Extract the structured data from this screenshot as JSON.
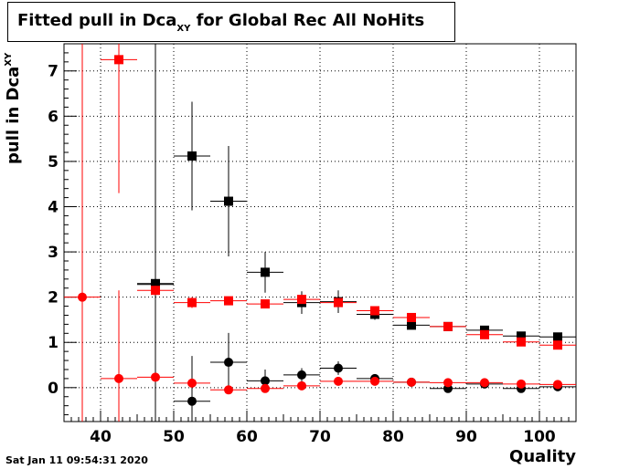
{
  "title": {
    "main": "Fitted pull in Dca",
    "sub": "XY",
    "rest": " for Global Rec All NoHits"
  },
  "ylabel": {
    "main": "pull in Dca",
    "sup": "XY"
  },
  "xlabel": "Quality",
  "timestamp": "Sat Jan 11 09:54:31 2020",
  "chart_data": {
    "type": "scatter",
    "xlim": [
      35,
      105
    ],
    "ylim": [
      -0.75,
      7.6
    ],
    "grid": true,
    "bin_width": 5,
    "x_ticks": [
      40,
      50,
      60,
      70,
      80,
      90,
      100
    ],
    "y_ticks": [
      0,
      1,
      2,
      3,
      4,
      5,
      6,
      7
    ],
    "series": [
      {
        "marker": "square",
        "color": "#000000",
        "points": [
          {
            "x": 47.5,
            "y": 2.3,
            "err": 5.3
          },
          {
            "x": 52.5,
            "y": 5.12,
            "err": 1.2
          },
          {
            "x": 57.5,
            "y": 4.12,
            "err": 1.22
          },
          {
            "x": 62.5,
            "y": 2.55,
            "err": 0.45
          },
          {
            "x": 67.5,
            "y": 1.88,
            "err": 0.25
          },
          {
            "x": 72.5,
            "y": 1.9,
            "err": 0.25
          },
          {
            "x": 77.5,
            "y": 1.62,
            "err": 0.12
          },
          {
            "x": 82.5,
            "y": 1.38,
            "err": 0.05
          },
          {
            "x": 87.5,
            "y": 1.35,
            "err": 0.04
          },
          {
            "x": 92.5,
            "y": 1.27,
            "err": 0.04
          },
          {
            "x": 97.5,
            "y": 1.14,
            "err": 0.04
          },
          {
            "x": 102.5,
            "y": 1.12,
            "err": 0.04
          }
        ]
      },
      {
        "marker": "circle",
        "color": "#000000",
        "points": [
          {
            "x": 47.5,
            "y": 2.28,
            "err": 5.3
          },
          {
            "x": 52.5,
            "y": -0.3,
            "err": 1.0
          },
          {
            "x": 57.5,
            "y": 0.56,
            "err": 0.65
          },
          {
            "x": 62.5,
            "y": 0.15,
            "err": 0.25
          },
          {
            "x": 67.5,
            "y": 0.28,
            "err": 0.15
          },
          {
            "x": 72.5,
            "y": 0.43,
            "err": 0.15
          },
          {
            "x": 77.5,
            "y": 0.2,
            "err": 0.08
          },
          {
            "x": 82.5,
            "y": 0.12,
            "err": 0.04
          },
          {
            "x": 87.5,
            "y": -0.02,
            "err": 0.03
          },
          {
            "x": 92.5,
            "y": 0.08,
            "err": 0.03
          },
          {
            "x": 97.5,
            "y": -0.02,
            "err": 0.03
          },
          {
            "x": 102.5,
            "y": 0.02,
            "err": 0.03
          }
        ]
      },
      {
        "marker": "square",
        "color": "#ff0000",
        "points": [
          {
            "x": 42.5,
            "y": 7.25,
            "err": 2.95
          },
          {
            "x": 47.5,
            "y": 2.15,
            "err": 0.1
          },
          {
            "x": 52.5,
            "y": 1.88,
            "err": 0.12
          },
          {
            "x": 57.5,
            "y": 1.92,
            "err": 0.07
          },
          {
            "x": 62.5,
            "y": 1.85,
            "err": 0.05
          },
          {
            "x": 67.5,
            "y": 1.95,
            "err": 0.05
          },
          {
            "x": 72.5,
            "y": 1.88,
            "err": 0.05
          },
          {
            "x": 77.5,
            "y": 1.7,
            "err": 0.04
          },
          {
            "x": 82.5,
            "y": 1.55,
            "err": 0.03
          },
          {
            "x": 87.5,
            "y": 1.35,
            "err": 0.03
          },
          {
            "x": 92.5,
            "y": 1.17,
            "err": 0.03
          },
          {
            "x": 97.5,
            "y": 1.01,
            "err": 0.03
          },
          {
            "x": 102.5,
            "y": 0.94,
            "err": 0.03
          }
        ]
      },
      {
        "marker": "circle",
        "color": "#ff0000",
        "points": [
          {
            "x": 37.5,
            "y": 2.0,
            "err": 9.0
          },
          {
            "x": 42.5,
            "y": 0.2,
            "err": 1.95
          },
          {
            "x": 47.5,
            "y": 0.23,
            "err": 0.1
          },
          {
            "x": 52.5,
            "y": 0.1,
            "err": 0.08
          },
          {
            "x": 57.5,
            "y": -0.05,
            "err": 0.06
          },
          {
            "x": 62.5,
            "y": -0.02,
            "err": 0.04
          },
          {
            "x": 67.5,
            "y": 0.04,
            "err": 0.03
          },
          {
            "x": 72.5,
            "y": 0.14,
            "err": 0.03
          },
          {
            "x": 77.5,
            "y": 0.14,
            "err": 0.03
          },
          {
            "x": 82.5,
            "y": 0.12,
            "err": 0.02
          },
          {
            "x": 87.5,
            "y": 0.11,
            "err": 0.02
          },
          {
            "x": 92.5,
            "y": 0.11,
            "err": 0.02
          },
          {
            "x": 97.5,
            "y": 0.08,
            "err": 0.02
          },
          {
            "x": 102.5,
            "y": 0.07,
            "err": 0.02
          }
        ]
      }
    ]
  }
}
